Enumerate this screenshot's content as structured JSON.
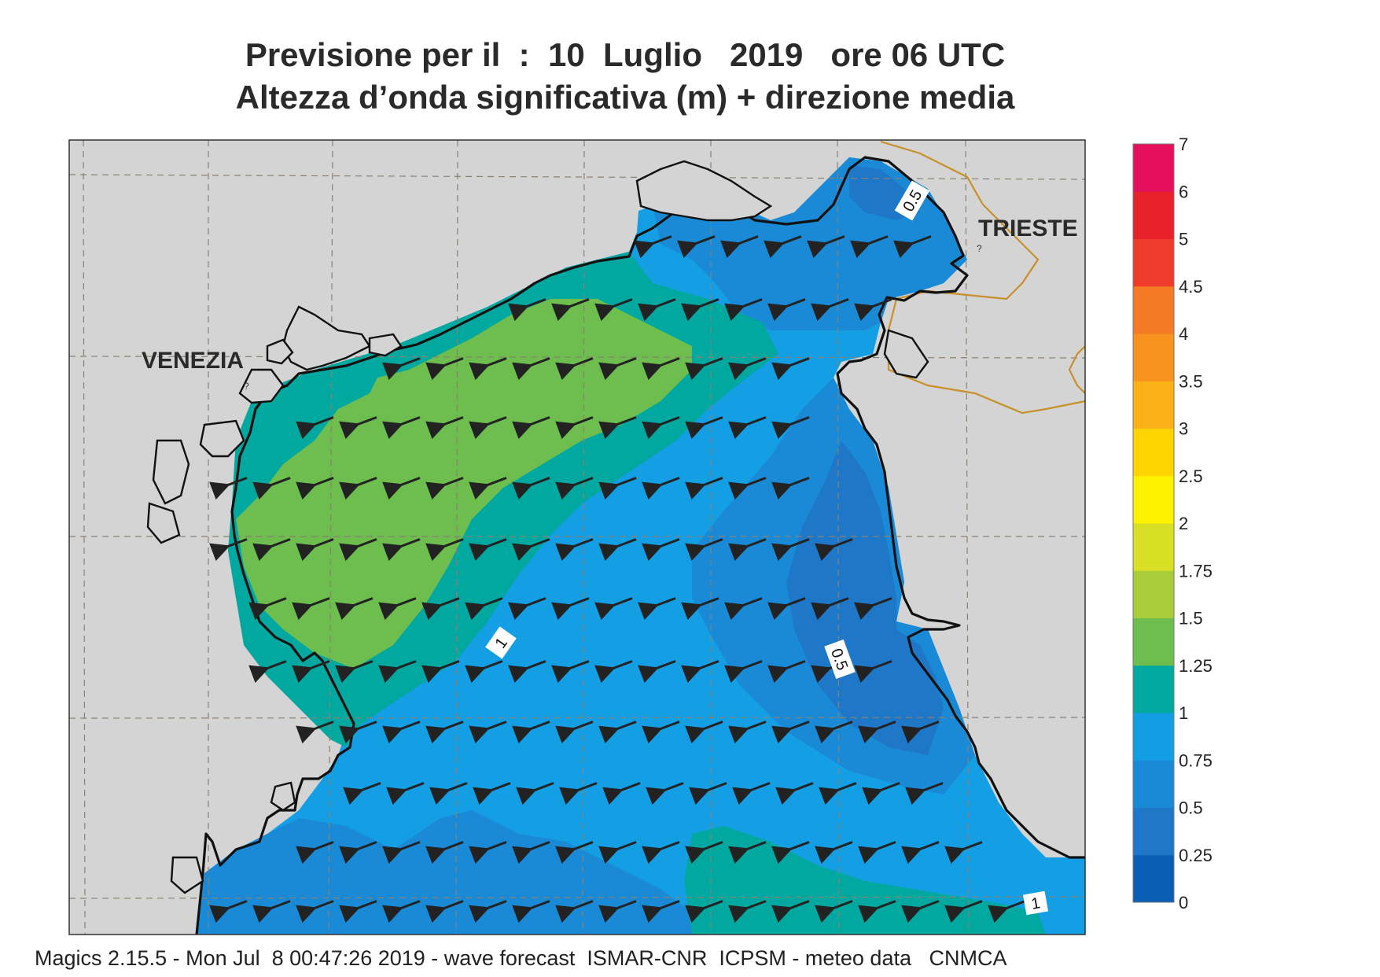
{
  "title_line1": "Previsione per il  :  10  Luglio   2019   ore 06 UTC",
  "title_line2": "Altezza d’onda significativa (m) + direzione media",
  "cities": [
    {
      "name": "VENEZIA"
    },
    {
      "name": "TRIESTE"
    }
  ],
  "contour_labels": [
    "0.5",
    "0.5",
    "1",
    "1"
  ],
  "colorbar": {
    "ticks": [
      "0",
      "0.25",
      "0.5",
      "0.75",
      "1",
      "1.25",
      "1.5",
      "1.75",
      "2",
      "2.5",
      "3",
      "3.5",
      "4",
      "4.5",
      "5",
      "6",
      "7"
    ],
    "colors": [
      "#0a5fb4",
      "#1f77c8",
      "#1a8ad6",
      "#139ee4",
      "#00a8a0",
      "#6dbd4f",
      "#a9cc3a",
      "#d8df24",
      "#fff200",
      "#ffd400",
      "#fbb117",
      "#f7931e",
      "#f47a25",
      "#ef3b2c",
      "#e8212b",
      "#e4105d"
    ]
  },
  "footer": "Magics 2.15.5 - Mon Jul  8 00:47:26 2019 - wave forecast  ISMAR-CNR  ICPSM - meteo data   CNMCA"
}
